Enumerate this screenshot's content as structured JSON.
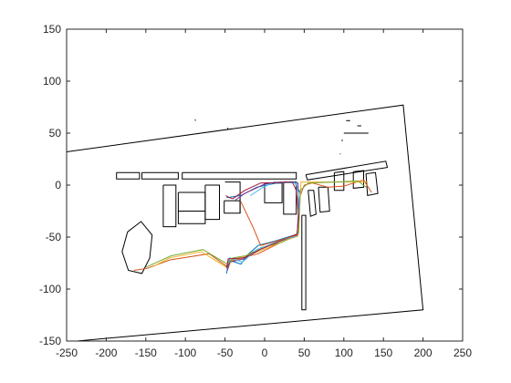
{
  "chart_data": {
    "type": "line",
    "title": "",
    "xlabel": "",
    "ylabel": "",
    "xlim": [
      -250,
      250
    ],
    "ylim": [
      -150,
      150
    ],
    "xticks": [
      -250,
      -200,
      -150,
      -100,
      -50,
      0,
      50,
      100,
      150,
      200,
      250
    ],
    "yticks": [
      -150,
      -100,
      -50,
      0,
      50,
      100,
      150
    ],
    "grid": false,
    "legend": "none",
    "map_lines": [
      {
        "points": [
          [
            -250,
            32
          ],
          [
            175,
            77
          ],
          [
            200,
            -120
          ],
          [
            -237,
            -150
          ]
        ]
      },
      {
        "points": [
          [
            -187,
            12
          ],
          [
            -158,
            12
          ],
          [
            -158,
            6
          ],
          [
            -187,
            6
          ],
          [
            -187,
            12
          ]
        ]
      },
      {
        "points": [
          [
            -155,
            12
          ],
          [
            -109,
            12
          ],
          [
            -109,
            6
          ],
          [
            -155,
            6
          ],
          [
            -155,
            12
          ]
        ]
      },
      {
        "points": [
          [
            -104,
            12
          ],
          [
            40,
            12
          ],
          [
            40,
            6
          ],
          [
            -104,
            6
          ],
          [
            -104,
            12
          ]
        ]
      },
      {
        "points": [
          [
            -128,
            0
          ],
          [
            -112,
            0
          ],
          [
            -112,
            -40
          ],
          [
            -128,
            -40
          ],
          [
            -128,
            0
          ]
        ]
      },
      {
        "points": [
          [
            -109,
            -7
          ],
          [
            -75,
            -7
          ],
          [
            -75,
            -37
          ],
          [
            -109,
            -37
          ],
          [
            -109,
            -7
          ]
        ]
      },
      {
        "points": [
          [
            -109,
            -25
          ],
          [
            -75,
            -25
          ]
        ]
      },
      {
        "points": [
          [
            -75,
            0
          ],
          [
            -57,
            0
          ],
          [
            -57,
            -33
          ],
          [
            -75,
            -33
          ],
          [
            -75,
            0
          ]
        ]
      },
      {
        "points": [
          [
            -51,
            -15
          ],
          [
            -31,
            -15
          ],
          [
            -31,
            -27
          ],
          [
            -51,
            -27
          ],
          [
            -51,
            -15
          ]
        ]
      },
      {
        "points": [
          [
            -31,
            -27
          ],
          [
            -31,
            3
          ],
          [
            -50,
            3
          ]
        ]
      },
      {
        "points": [
          [
            0,
            2
          ],
          [
            22,
            2
          ],
          [
            22,
            -17
          ],
          [
            0,
            -17
          ],
          [
            0,
            2
          ]
        ]
      },
      {
        "points": [
          [
            24,
            3
          ],
          [
            40,
            3
          ],
          [
            40,
            -28
          ],
          [
            24,
            -28
          ],
          [
            24,
            3
          ]
        ]
      },
      {
        "points": [
          [
            47,
            -29
          ],
          [
            52,
            -29
          ],
          [
            52,
            -120
          ],
          [
            47,
            -120
          ],
          [
            47,
            -29
          ]
        ]
      },
      {
        "points": [
          [
            52,
            10
          ],
          [
            153,
            23
          ],
          [
            155,
            17
          ],
          [
            54,
            5
          ],
          [
            52,
            10
          ]
        ]
      },
      {
        "points": [
          [
            55,
            -5
          ],
          [
            62,
            -5
          ],
          [
            65,
            -28
          ],
          [
            58,
            -30
          ],
          [
            55,
            -5
          ]
        ]
      },
      {
        "points": [
          [
            68,
            -2
          ],
          [
            80,
            -2
          ],
          [
            82,
            -25
          ],
          [
            70,
            -26
          ],
          [
            68,
            -2
          ]
        ]
      },
      {
        "points": [
          [
            88,
            12
          ],
          [
            100,
            13
          ],
          [
            100,
            -5
          ],
          [
            88,
            -5
          ],
          [
            88,
            12
          ]
        ]
      },
      {
        "points": [
          [
            112,
            13
          ],
          [
            125,
            14
          ],
          [
            125,
            -2
          ],
          [
            112,
            -3
          ],
          [
            112,
            13
          ]
        ]
      },
      {
        "points": [
          [
            128,
            11
          ],
          [
            140,
            12
          ],
          [
            143,
            -8
          ],
          [
            130,
            -10
          ],
          [
            128,
            11
          ]
        ]
      },
      {
        "points": [
          [
            -173,
            -45
          ],
          [
            -156,
            -35
          ],
          [
            -142,
            -48
          ],
          [
            -145,
            -70
          ],
          [
            -155,
            -85
          ],
          [
            -172,
            -82
          ],
          [
            -180,
            -64
          ],
          [
            -173,
            -45
          ]
        ]
      },
      {
        "points": [
          [
            -88,
            63
          ],
          [
            -87,
            62
          ]
        ]
      },
      {
        "points": [
          [
            -47,
            55
          ],
          [
            -46,
            54
          ]
        ]
      },
      {
        "points": [
          [
            103,
            62
          ],
          [
            108,
            62
          ]
        ]
      },
      {
        "points": [
          [
            117,
            57
          ],
          [
            122,
            57
          ]
        ]
      },
      {
        "points": [
          [
            100,
            50
          ],
          [
            131,
            50
          ]
        ]
      },
      {
        "points": [
          [
            97,
            43
          ],
          [
            99,
            43
          ]
        ]
      },
      {
        "points": [
          [
            95,
            30
          ],
          [
            96,
            30
          ]
        ]
      }
    ],
    "series": [
      {
        "color": "#0072BD",
        "points": [
          [
            -48,
            -85
          ],
          [
            -45,
            -72
          ],
          [
            -30,
            -76
          ],
          [
            -20,
            -66
          ],
          [
            -8,
            -58
          ],
          [
            12,
            -54
          ],
          [
            42,
            -47
          ],
          [
            45,
            -8
          ],
          [
            38,
            3
          ],
          [
            15,
            2
          ],
          [
            -10,
            -2
          ],
          [
            -30,
            -10
          ],
          [
            -48,
            -12
          ]
        ]
      },
      {
        "color": "#D95319",
        "points": [
          [
            -165,
            -82
          ],
          [
            -148,
            -80
          ],
          [
            -120,
            -72
          ],
          [
            -70,
            -66
          ],
          [
            -48,
            -78
          ],
          [
            -43,
            -73
          ],
          [
            -28,
            -70
          ],
          [
            -8,
            -66
          ],
          [
            18,
            -56
          ],
          [
            42,
            -48
          ],
          [
            45,
            -10
          ],
          [
            50,
            0
          ],
          [
            60,
            2
          ],
          [
            80,
            -2
          ],
          [
            100,
            -1
          ],
          [
            125,
            5
          ],
          [
            135,
            -7
          ]
        ]
      },
      {
        "color": "#EDB120",
        "points": [
          [
            -140,
            -78
          ],
          [
            -120,
            -70
          ],
          [
            -80,
            -64
          ],
          [
            -46,
            -80
          ],
          [
            -42,
            -72
          ],
          [
            -25,
            -69
          ],
          [
            -5,
            -63
          ],
          [
            20,
            -55
          ],
          [
            42,
            -49
          ],
          [
            44,
            -26
          ],
          [
            46,
            3
          ],
          [
            75,
            3
          ],
          [
            110,
            3
          ],
          [
            130,
            3
          ]
        ]
      },
      {
        "color": "#7E2F8E",
        "points": [
          [
            -47,
            -82
          ],
          [
            -44,
            -74
          ],
          [
            -26,
            -71
          ],
          [
            -6,
            -62
          ],
          [
            15,
            -55
          ],
          [
            41,
            -48
          ],
          [
            43,
            -20
          ],
          [
            42,
            2
          ],
          [
            20,
            3
          ],
          [
            0,
            1
          ],
          [
            -25,
            -8
          ],
          [
            -38,
            -15
          ]
        ]
      },
      {
        "color": "#77AC30",
        "points": [
          [
            -150,
            -79
          ],
          [
            -118,
            -68
          ],
          [
            -78,
            -62
          ],
          [
            -47,
            -76
          ],
          [
            -40,
            -70
          ],
          [
            -24,
            -68
          ],
          [
            -4,
            -60
          ],
          [
            22,
            -55
          ],
          [
            43,
            -46
          ],
          [
            45,
            -5
          ],
          [
            55,
            2
          ],
          [
            90,
            3
          ],
          [
            118,
            4
          ],
          [
            128,
            -2
          ]
        ]
      },
      {
        "color": "#4DBEEE",
        "points": [
          [
            -48,
            -78
          ],
          [
            -44,
            -70
          ],
          [
            -28,
            -74
          ],
          [
            -10,
            -62
          ],
          [
            14,
            -55
          ],
          [
            41,
            -49
          ],
          [
            44,
            -15
          ],
          [
            40,
            2
          ],
          [
            12,
            3
          ],
          [
            -4,
            -3
          ],
          [
            -18,
            -10
          ]
        ]
      },
      {
        "color": "#A2142F",
        "points": [
          [
            -48,
            -80
          ],
          [
            -46,
            -71
          ],
          [
            -26,
            -70
          ],
          [
            -6,
            -62
          ],
          [
            16,
            -55
          ],
          [
            41,
            -47
          ],
          [
            43,
            -30
          ],
          [
            40,
            -5
          ],
          [
            35,
            3
          ],
          [
            -5,
            2
          ],
          [
            -25,
            -5
          ],
          [
            -40,
            -13
          ],
          [
            -45,
            -12
          ],
          [
            -49,
            -10
          ]
        ]
      },
      {
        "color": "#D95319",
        "points": [
          [
            -30,
            -16
          ],
          [
            -15,
            -40
          ],
          [
            -5,
            -58
          ],
          [
            10,
            -55
          ],
          [
            42,
            -48
          ]
        ]
      }
    ]
  }
}
